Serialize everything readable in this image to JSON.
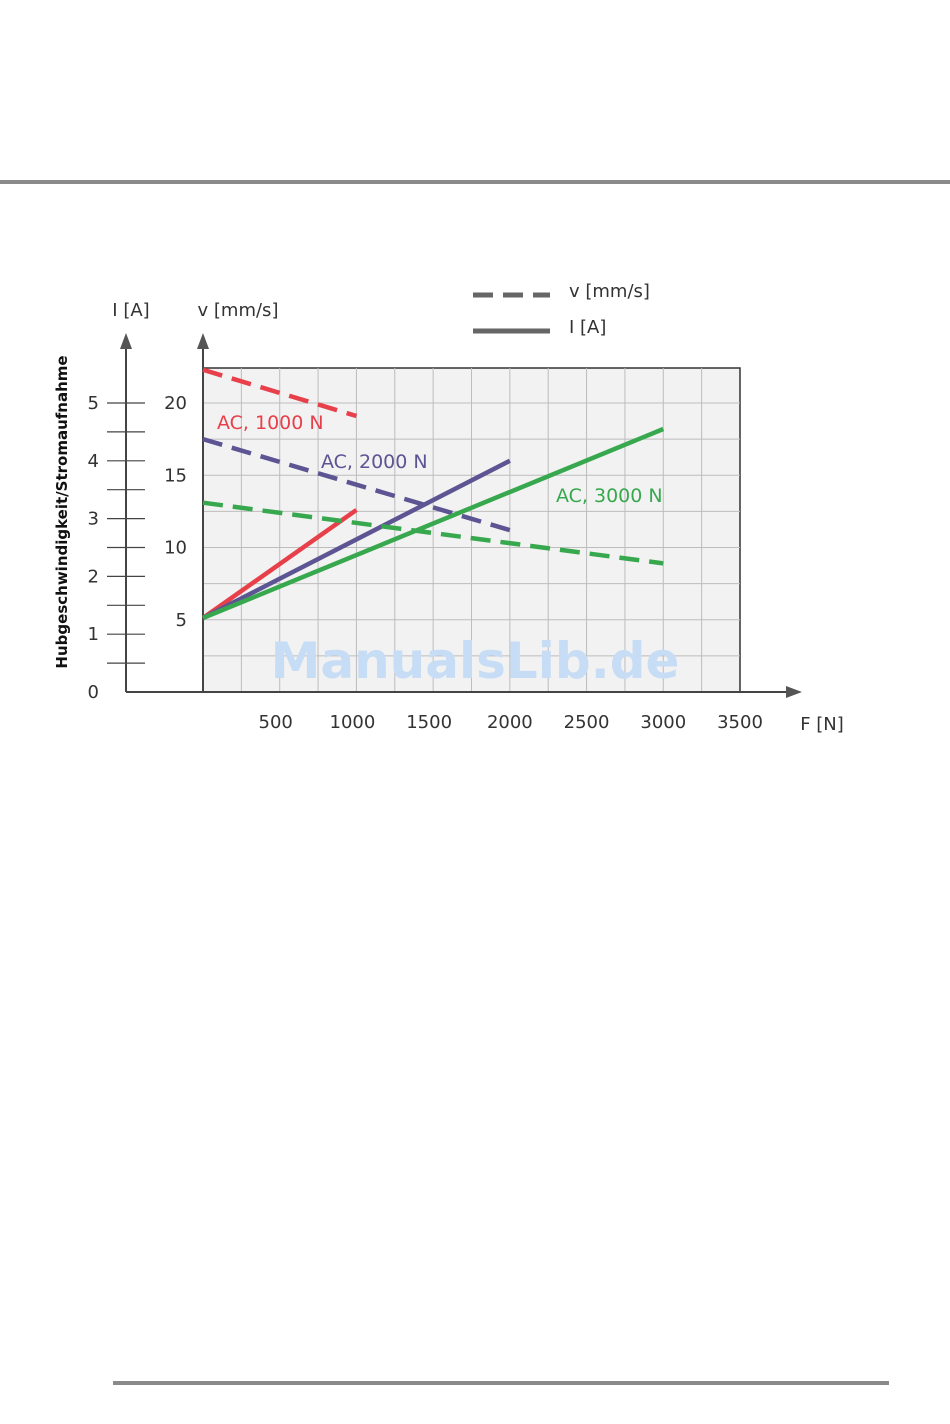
{
  "page": {
    "watermark": "ManualsLib.de"
  },
  "chart_data": {
    "type": "line",
    "ylabel": "Hubgeschwindigkeit/Stromaufnahme",
    "x_axis": {
      "label": "F [N]",
      "ticks": [
        500,
        1000,
        1500,
        2000,
        2500,
        3000,
        3500
      ],
      "tick_labels": [
        "500",
        "1000",
        "1500",
        "2000",
        "2500",
        "3000",
        "3500"
      ],
      "range": [
        0,
        3500
      ]
    },
    "y_axis_velocity": {
      "label": "v [mm/s]",
      "ticks": [
        5,
        10,
        15,
        20
      ],
      "tick_labels": [
        "5",
        "10",
        "15",
        "20"
      ],
      "range": [
        0,
        22.5
      ]
    },
    "y_axis_current": {
      "label": "I [A]",
      "ticks": [
        0,
        1,
        2,
        3,
        4,
        5
      ],
      "tick_labels": [
        "0",
        "1",
        "2",
        "3",
        "4",
        "5"
      ],
      "range": [
        0,
        5.6
      ]
    },
    "grid": true,
    "legend": {
      "placement": "top-right",
      "entries": [
        {
          "label": "v [mm/s]",
          "style": "dashed"
        },
        {
          "label": "I [A]",
          "style": "solid"
        }
      ]
    },
    "series": [
      {
        "label": "AC, 1000 N",
        "color": "#e8404a",
        "velocity": {
          "x": [
            0,
            1000
          ],
          "y": [
            22.3,
            19.1
          ]
        },
        "current": {
          "x": [
            0,
            1000
          ],
          "y": [
            1.28,
            3.15
          ]
        }
      },
      {
        "label": "AC, 2000 N",
        "color": "#5c5493",
        "velocity": {
          "x": [
            0,
            2000
          ],
          "y": [
            17.5,
            11.2
          ]
        },
        "current": {
          "x": [
            0,
            2000
          ],
          "y": [
            1.28,
            4.0
          ]
        }
      },
      {
        "label": "AC, 3000 N",
        "color": "#38a84f",
        "velocity": {
          "x": [
            0,
            3000
          ],
          "y": [
            13.1,
            8.9
          ]
        },
        "current": {
          "x": [
            0,
            3000
          ],
          "y": [
            1.28,
            4.55
          ]
        }
      }
    ]
  }
}
